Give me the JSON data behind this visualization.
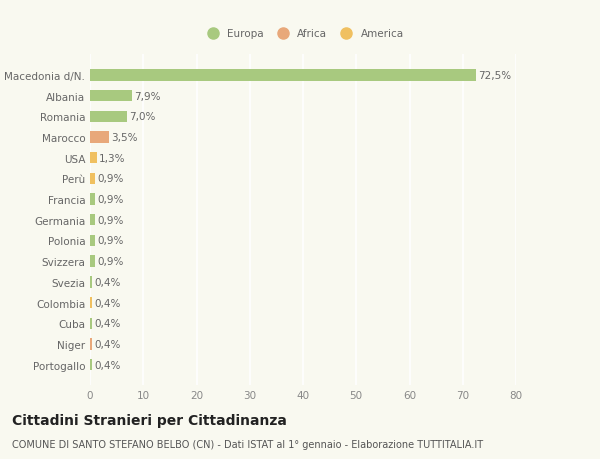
{
  "countries": [
    "Portogallo",
    "Niger",
    "Cuba",
    "Colombia",
    "Svezia",
    "Svizzera",
    "Polonia",
    "Germania",
    "Francia",
    "Perù",
    "USA",
    "Marocco",
    "Romania",
    "Albania",
    "Macedonia d/N."
  ],
  "values": [
    0.4,
    0.4,
    0.4,
    0.4,
    0.4,
    0.9,
    0.9,
    0.9,
    0.9,
    0.9,
    1.3,
    3.5,
    7.0,
    7.9,
    72.5
  ],
  "labels": [
    "0,4%",
    "0,4%",
    "0,4%",
    "0,4%",
    "0,4%",
    "0,9%",
    "0,9%",
    "0,9%",
    "0,9%",
    "0,9%",
    "1,3%",
    "3,5%",
    "7,0%",
    "7,9%",
    "72,5%"
  ],
  "colors": [
    "#a8c97f",
    "#e8a87a",
    "#a8c97f",
    "#f0c060",
    "#a8c97f",
    "#a8c97f",
    "#a8c97f",
    "#a8c97f",
    "#a8c97f",
    "#f0c060",
    "#f0c060",
    "#e8a87a",
    "#a8c97f",
    "#a8c97f",
    "#a8c97f"
  ],
  "categories": {
    "Europa": "#a8c97f",
    "Africa": "#e8a87a",
    "America": "#f0c060"
  },
  "xlim": [
    0,
    80
  ],
  "xticks": [
    0,
    10,
    20,
    30,
    40,
    50,
    60,
    70,
    80
  ],
  "title": "Cittadini Stranieri per Cittadinanza",
  "subtitle": "COMUNE DI SANTO STEFANO BELBO (CN) - Dati ISTAT al 1° gennaio - Elaborazione TUTTITALIA.IT",
  "background_color": "#f9f9f0",
  "grid_color": "#ffffff",
  "bar_height": 0.55,
  "title_fontsize": 10,
  "subtitle_fontsize": 7,
  "label_fontsize": 7.5,
  "tick_fontsize": 7.5
}
